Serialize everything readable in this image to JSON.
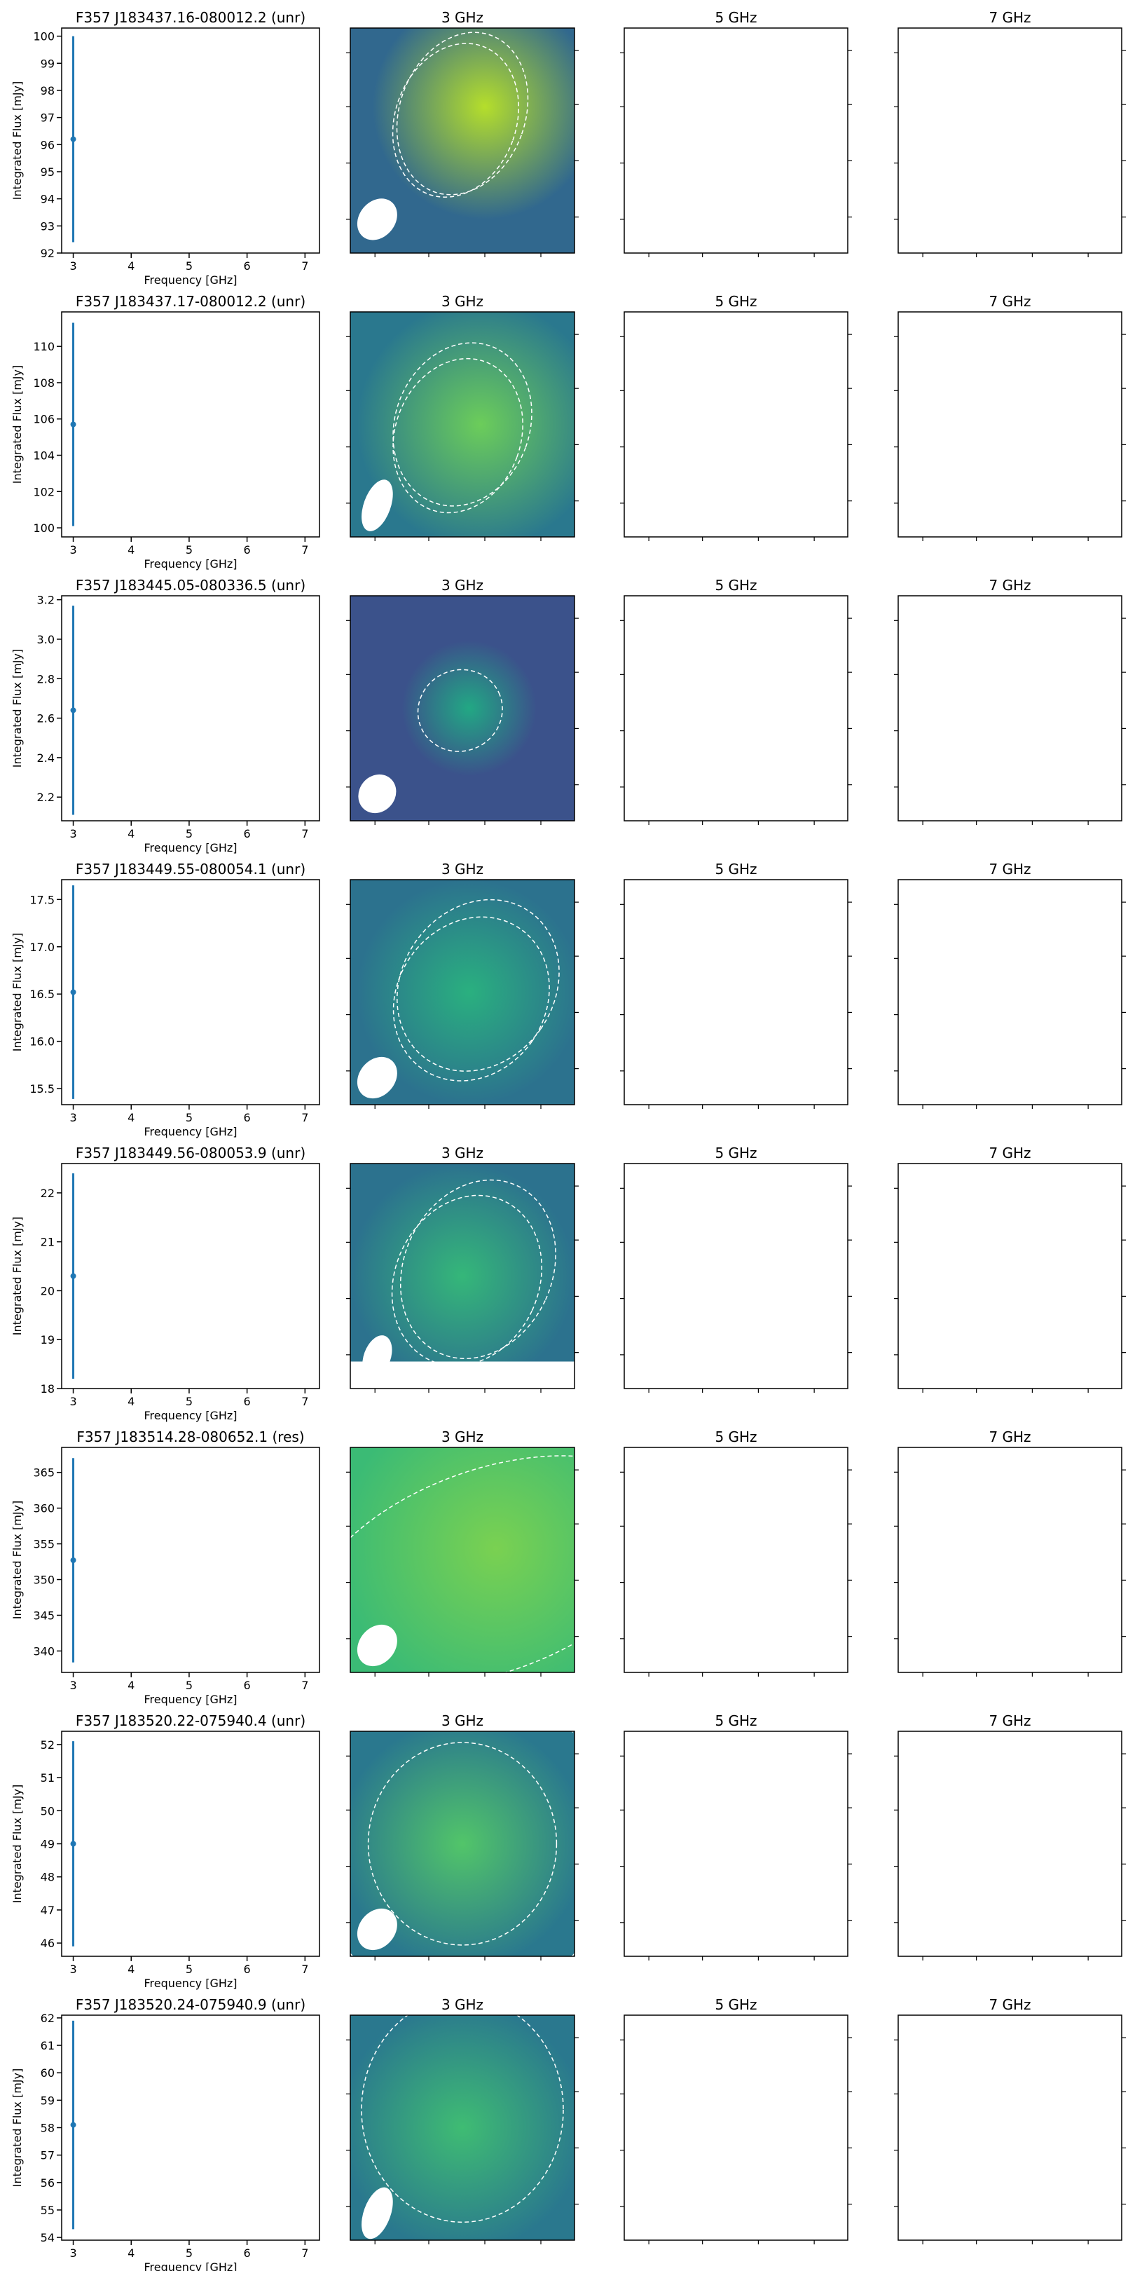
{
  "chart_data": [
    {
      "type": "errorbar",
      "title": "F357 J183437.16-080012.2 (unr)",
      "x_label": "Frequency [GHz]",
      "y_label": "Integrated Flux [mJy]",
      "x": [
        3
      ],
      "values": [
        96.2
      ],
      "errors": [
        3.8
      ],
      "color": "#1f77b4",
      "xlim": [
        2.8,
        7.25
      ],
      "xticks": [
        3,
        4,
        5,
        6,
        7
      ],
      "ylim": [
        92,
        100.3
      ],
      "yticks": [
        92,
        93,
        94,
        95,
        96,
        97,
        98,
        99,
        100
      ]
    },
    {
      "type": "image",
      "title": "3 GHz"
    },
    {
      "type": "image",
      "title": "5 GHz"
    },
    {
      "type": "image",
      "title": "7 GHz"
    },
    {
      "type": "errorbar",
      "title": "F357 J183437.17-080012.2 (unr)",
      "x_label": "Frequency [GHz]",
      "y_label": "Integrated Flux [mJy]",
      "x": [
        3
      ],
      "values": [
        105.7
      ],
      "errors": [
        5.6
      ],
      "color": "#1f77b4",
      "xlim": [
        2.8,
        7.25
      ],
      "xticks": [
        3,
        4,
        5,
        6,
        7
      ],
      "ylim": [
        99.5,
        111.9
      ],
      "yticks": [
        100,
        102,
        104,
        106,
        108,
        110
      ]
    },
    {
      "type": "image",
      "title": "3 GHz"
    },
    {
      "type": "image",
      "title": "5 GHz"
    },
    {
      "type": "image",
      "title": "7 GHz"
    },
    {
      "type": "errorbar",
      "title": "F357 J183445.05-080336.5 (unr)",
      "x_label": "Frequency [GHz]",
      "y_label": "Integrated Flux [mJy]",
      "x": [
        3
      ],
      "values": [
        2.64
      ],
      "errors": [
        0.53
      ],
      "color": "#1f77b4",
      "xlim": [
        2.8,
        7.25
      ],
      "xticks": [
        3,
        4,
        5,
        6,
        7
      ],
      "ylim": [
        2.08,
        3.22
      ],
      "yticks": [
        2.2,
        2.4,
        2.6,
        2.8,
        {
          "value": 3,
          "label": "3.0"
        },
        3.2
      ]
    },
    {
      "type": "image",
      "title": "3 GHz"
    },
    {
      "type": "image",
      "title": "5 GHz"
    },
    {
      "type": "image",
      "title": "7 GHz"
    },
    {
      "type": "errorbar",
      "title": "F357 J183449.55-080054.1 (unr)",
      "x_label": "Frequency [GHz]",
      "y_label": "Integrated Flux [mJy]",
      "x": [
        3
      ],
      "values": [
        16.52
      ],
      "errors": [
        1.13
      ],
      "color": "#1f77b4",
      "xlim": [
        2.8,
        7.25
      ],
      "xticks": [
        3,
        4,
        5,
        6,
        7
      ],
      "ylim": [
        15.33,
        17.71
      ],
      "yticks": [
        15.5,
        {
          "value": 16,
          "label": "16.0"
        },
        16.5,
        {
          "value": 17,
          "label": "17.0"
        },
        17.5
      ]
    },
    {
      "type": "image",
      "title": "3 GHz"
    },
    {
      "type": "image",
      "title": "5 GHz"
    },
    {
      "type": "image",
      "title": "7 GHz"
    },
    {
      "type": "errorbar",
      "title": "F357 J183449.56-080053.9 (unr)",
      "x_label": "Frequency [GHz]",
      "y_label": "Integrated Flux [mJy]",
      "x": [
        3
      ],
      "values": [
        20.3
      ],
      "errors": [
        2.1
      ],
      "color": "#1f77b4",
      "xlim": [
        2.8,
        7.25
      ],
      "xticks": [
        3,
        4,
        5,
        6,
        7
      ],
      "ylim": [
        18,
        22.6
      ],
      "yticks": [
        18,
        19,
        20,
        21,
        22
      ]
    },
    {
      "type": "image",
      "title": "3 GHz"
    },
    {
      "type": "image",
      "title": "5 GHz"
    },
    {
      "type": "image",
      "title": "7 GHz"
    },
    {
      "type": "errorbar",
      "title": "F357 J183514.28-080652.1 (res)",
      "x_label": "Frequency [GHz]",
      "y_label": "Integrated Flux [mJy]",
      "x": [
        3
      ],
      "values": [
        352.7
      ],
      "errors": [
        14.3
      ],
      "color": "#1f77b4",
      "xlim": [
        2.8,
        7.25
      ],
      "xticks": [
        3,
        4,
        5,
        6,
        7
      ],
      "ylim": [
        337,
        368.5
      ],
      "yticks": [
        340,
        345,
        350,
        355,
        360,
        365
      ]
    },
    {
      "type": "image",
      "title": "3 GHz"
    },
    {
      "type": "image",
      "title": "5 GHz"
    },
    {
      "type": "image",
      "title": "7 GHz"
    },
    {
      "type": "errorbar",
      "title": "F357 J183520.22-075940.4 (unr)",
      "x_label": "Frequency [GHz]",
      "y_label": "Integrated Flux [mJy]",
      "x": [
        3
      ],
      "values": [
        49.0
      ],
      "errors": [
        3.1
      ],
      "color": "#1f77b4",
      "xlim": [
        2.8,
        7.25
      ],
      "xticks": [
        3,
        4,
        5,
        6,
        7
      ],
      "ylim": [
        45.6,
        52.4
      ],
      "yticks": [
        46,
        47,
        48,
        49,
        50,
        51,
        52
      ]
    },
    {
      "type": "image",
      "title": "3 GHz"
    },
    {
      "type": "image",
      "title": "5 GHz"
    },
    {
      "type": "image",
      "title": "7 GHz"
    },
    {
      "type": "errorbar",
      "title": "F357 J183520.24-075940.9 (unr)",
      "x_label": "Frequency [GHz]",
      "y_label": "Integrated Flux [mJy]",
      "x": [
        3
      ],
      "values": [
        58.1
      ],
      "errors": [
        3.8
      ],
      "color": "#1f77b4",
      "xlim": [
        2.8,
        7.25
      ],
      "xticks": [
        3,
        4,
        5,
        6,
        7
      ],
      "ylim": [
        53.9,
        62.1
      ],
      "yticks": [
        54,
        55,
        56,
        57,
        58,
        59,
        60,
        61,
        62
      ]
    },
    {
      "type": "image",
      "title": "3 GHz"
    },
    {
      "type": "image",
      "title": "5 GHz"
    },
    {
      "type": "image",
      "title": "7 GHz"
    }
  ]
}
